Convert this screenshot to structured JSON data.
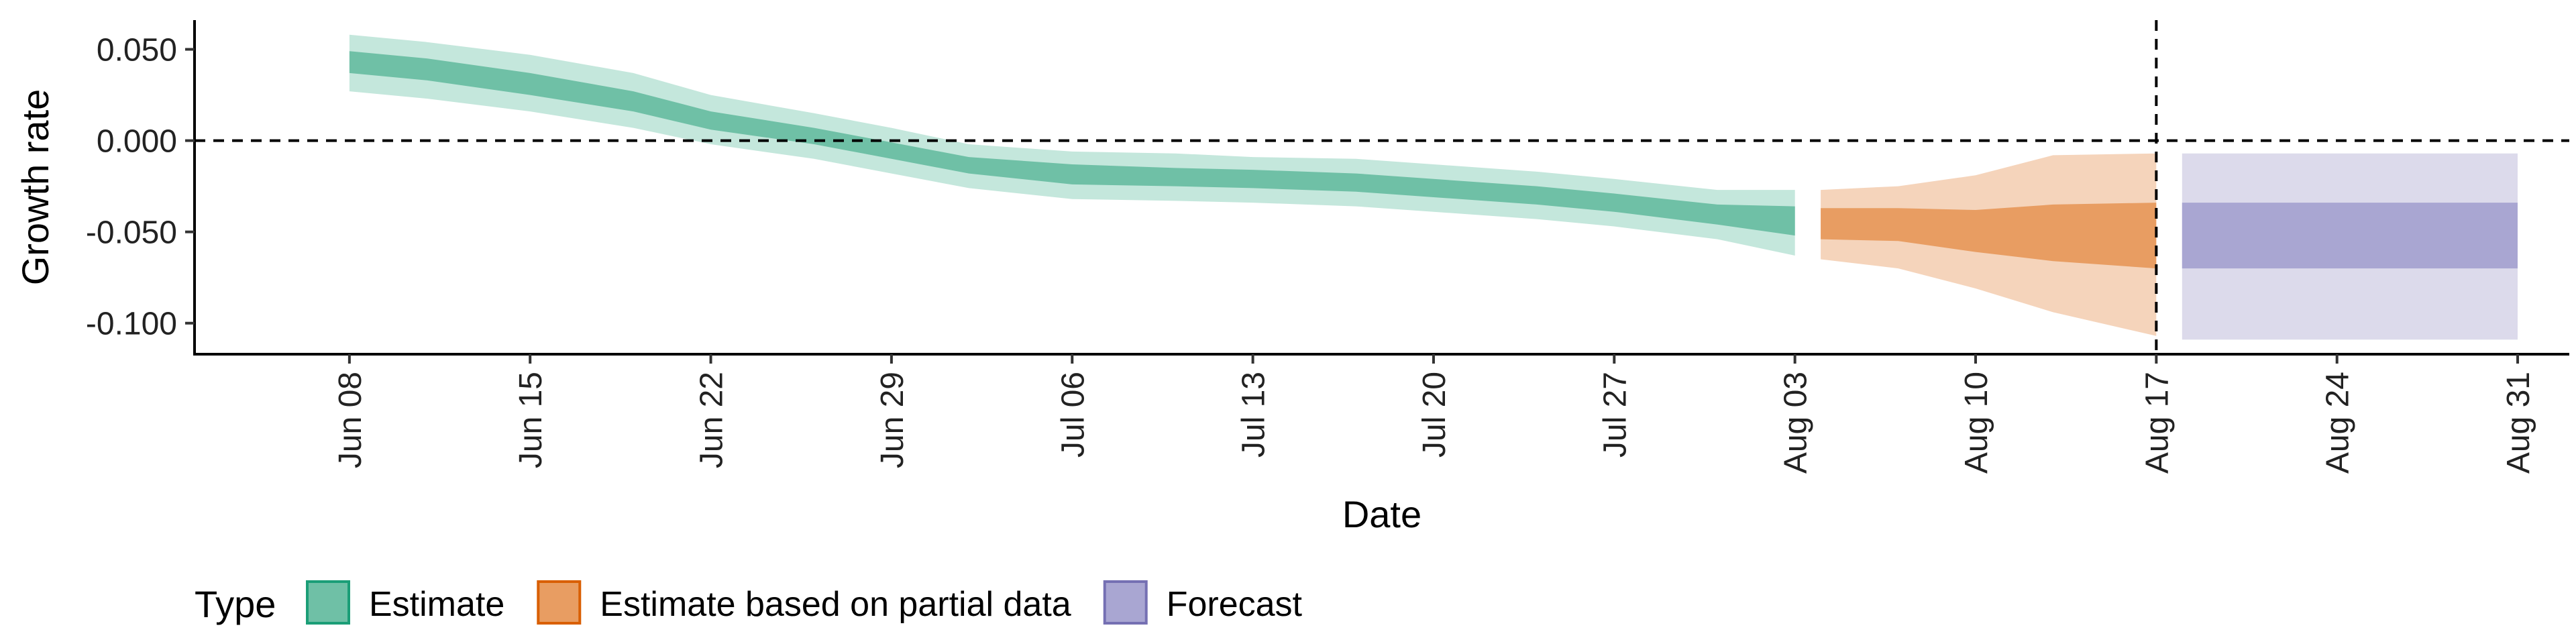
{
  "chart_data": {
    "type": "area",
    "title": "",
    "xlabel": "Date",
    "ylabel": "Growth rate",
    "ylim": [
      -0.117,
      0.066
    ],
    "xlim": [
      "2021-06-02",
      "2021-09-02"
    ],
    "x_ticks": [
      {
        "date": "2021-06-08",
        "label": "Jun 08"
      },
      {
        "date": "2021-06-15",
        "label": "Jun 15"
      },
      {
        "date": "2021-06-22",
        "label": "Jun 22"
      },
      {
        "date": "2021-06-29",
        "label": "Jun 29"
      },
      {
        "date": "2021-07-06",
        "label": "Jul 06"
      },
      {
        "date": "2021-07-13",
        "label": "Jul 13"
      },
      {
        "date": "2021-07-20",
        "label": "Jul 20"
      },
      {
        "date": "2021-07-27",
        "label": "Jul 27"
      },
      {
        "date": "2021-08-03",
        "label": "Aug 03"
      },
      {
        "date": "2021-08-10",
        "label": "Aug 10"
      },
      {
        "date": "2021-08-17",
        "label": "Aug 17"
      },
      {
        "date": "2021-08-24",
        "label": "Aug 24"
      },
      {
        "date": "2021-08-31",
        "label": "Aug 31"
      }
    ],
    "y_ticks": [
      {
        "value": 0.05,
        "label": "0.050"
      },
      {
        "value": 0.0,
        "label": "0.000"
      },
      {
        "value": -0.05,
        "label": "-0.050"
      },
      {
        "value": -0.1,
        "label": "-0.100"
      }
    ],
    "reference_lines": {
      "horizontal_y": 0.0,
      "vertical_date": "2021-08-17"
    },
    "grid": false,
    "legend": {
      "title": "Type",
      "placement": "bottom-left",
      "entries": [
        {
          "label": "Estimate",
          "fill": "#6fc0a6",
          "stroke": "#1b9e77"
        },
        {
          "label": "Estimate based on partial data",
          "fill": "#e89d62",
          "stroke": "#d95f02"
        },
        {
          "label": "Forecast",
          "fill": "#a9a6d2",
          "stroke": "#7570b3"
        }
      ]
    },
    "series": [
      {
        "name": "Estimate",
        "band_colors": {
          "outer": "#c4e7dc",
          "inner": "#6fc0a6"
        },
        "points": [
          {
            "x": "2021-06-08",
            "lo90": 0.027,
            "lo50": 0.037,
            "hi50": 0.049,
            "hi90": 0.058
          },
          {
            "x": "2021-06-11",
            "lo90": 0.023,
            "lo50": 0.033,
            "hi50": 0.045,
            "hi90": 0.054
          },
          {
            "x": "2021-06-15",
            "lo90": 0.016,
            "lo50": 0.025,
            "hi50": 0.037,
            "hi90": 0.047
          },
          {
            "x": "2021-06-19",
            "lo90": 0.007,
            "lo50": 0.016,
            "hi50": 0.027,
            "hi90": 0.037
          },
          {
            "x": "2021-06-22",
            "lo90": -0.002,
            "lo50": 0.006,
            "hi50": 0.016,
            "hi90": 0.025
          },
          {
            "x": "2021-06-26",
            "lo90": -0.01,
            "lo50": -0.002,
            "hi50": 0.007,
            "hi90": 0.015
          },
          {
            "x": "2021-06-29",
            "lo90": -0.018,
            "lo50": -0.01,
            "hi50": -0.001,
            "hi90": 0.007
          },
          {
            "x": "2021-07-02",
            "lo90": -0.026,
            "lo50": -0.018,
            "hi50": -0.009,
            "hi90": -0.002
          },
          {
            "x": "2021-07-06",
            "lo90": -0.032,
            "lo50": -0.024,
            "hi50": -0.013,
            "hi90": -0.006
          },
          {
            "x": "2021-07-10",
            "lo90": -0.033,
            "lo50": -0.025,
            "hi50": -0.015,
            "hi90": -0.007
          },
          {
            "x": "2021-07-13",
            "lo90": -0.034,
            "lo50": -0.026,
            "hi50": -0.016,
            "hi90": -0.009
          },
          {
            "x": "2021-07-17",
            "lo90": -0.036,
            "lo50": -0.028,
            "hi50": -0.018,
            "hi90": -0.01
          },
          {
            "x": "2021-07-20",
            "lo90": -0.039,
            "lo50": -0.031,
            "hi50": -0.021,
            "hi90": -0.013
          },
          {
            "x": "2021-07-24",
            "lo90": -0.043,
            "lo50": -0.035,
            "hi50": -0.025,
            "hi90": -0.017
          },
          {
            "x": "2021-07-27",
            "lo90": -0.047,
            "lo50": -0.039,
            "hi50": -0.029,
            "hi90": -0.021
          },
          {
            "x": "2021-07-31",
            "lo90": -0.054,
            "lo50": -0.046,
            "hi50": -0.035,
            "hi90": -0.027
          },
          {
            "x": "2021-08-03",
            "lo90": -0.063,
            "lo50": -0.052,
            "hi50": -0.036,
            "hi90": -0.027
          }
        ]
      },
      {
        "name": "Estimate based on partial data",
        "band_colors": {
          "outer": "#f5d4bb",
          "inner": "#e89d62"
        },
        "points": [
          {
            "x": "2021-08-04",
            "lo90": -0.065,
            "lo50": -0.054,
            "hi50": -0.037,
            "hi90": -0.027
          },
          {
            "x": "2021-08-07",
            "lo90": -0.07,
            "lo50": -0.055,
            "hi50": -0.037,
            "hi90": -0.025
          },
          {
            "x": "2021-08-10",
            "lo90": -0.081,
            "lo50": -0.061,
            "hi50": -0.038,
            "hi90": -0.019
          },
          {
            "x": "2021-08-13",
            "lo90": -0.094,
            "lo50": -0.066,
            "hi50": -0.035,
            "hi90": -0.008
          },
          {
            "x": "2021-08-17",
            "lo90": -0.107,
            "lo50": -0.07,
            "hi50": -0.034,
            "hi90": -0.007
          }
        ]
      },
      {
        "name": "Forecast",
        "band_colors": {
          "outer": "#dcdaeb",
          "inner": "#a9a6d2"
        },
        "points": [
          {
            "x": "2021-08-18",
            "lo90": -0.109,
            "lo50": -0.07,
            "hi50": -0.034,
            "hi90": -0.007
          },
          {
            "x": "2021-08-31",
            "lo90": -0.109,
            "lo50": -0.07,
            "hi50": -0.034,
            "hi90": -0.007
          }
        ]
      }
    ]
  }
}
